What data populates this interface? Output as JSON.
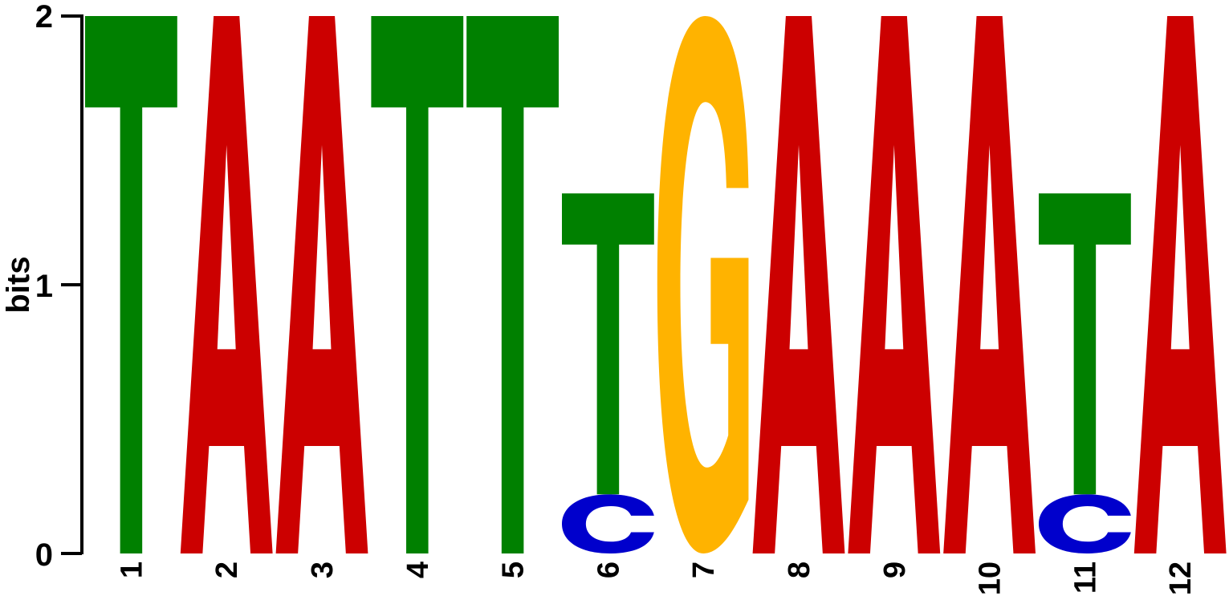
{
  "chart_data": {
    "type": "sequence-logo",
    "title": "",
    "ylabel": "bits",
    "xlabel": "",
    "ylim": [
      0,
      2
    ],
    "yticks": [
      {
        "value": 0,
        "label": "0"
      },
      {
        "value": 1,
        "label": "1"
      },
      {
        "value": 2,
        "label": "2"
      }
    ],
    "colors": {
      "A": "#cc0000",
      "C": "#0000cc",
      "G": "#ffb300",
      "T": "#008000"
    },
    "positions": [
      {
        "label": "1",
        "letters": [
          {
            "base": "T",
            "bits": 2.0
          }
        ]
      },
      {
        "label": "2",
        "letters": [
          {
            "base": "A",
            "bits": 2.0
          }
        ]
      },
      {
        "label": "3",
        "letters": [
          {
            "base": "A",
            "bits": 2.0
          }
        ]
      },
      {
        "label": "4",
        "letters": [
          {
            "base": "T",
            "bits": 2.0
          }
        ]
      },
      {
        "label": "5",
        "letters": [
          {
            "base": "T",
            "bits": 2.0
          }
        ]
      },
      {
        "label": "6",
        "letters": [
          {
            "base": "C",
            "bits": 0.22
          },
          {
            "base": "T",
            "bits": 1.12
          }
        ]
      },
      {
        "label": "7",
        "letters": [
          {
            "base": "G",
            "bits": 2.0
          }
        ]
      },
      {
        "label": "8",
        "letters": [
          {
            "base": "A",
            "bits": 2.0
          }
        ]
      },
      {
        "label": "9",
        "letters": [
          {
            "base": "A",
            "bits": 2.0
          }
        ]
      },
      {
        "label": "10",
        "letters": [
          {
            "base": "A",
            "bits": 2.0
          }
        ]
      },
      {
        "label": "11",
        "letters": [
          {
            "base": "C",
            "bits": 0.22
          },
          {
            "base": "T",
            "bits": 1.12
          }
        ]
      },
      {
        "label": "12",
        "letters": [
          {
            "base": "A",
            "bits": 2.0
          }
        ]
      }
    ]
  }
}
